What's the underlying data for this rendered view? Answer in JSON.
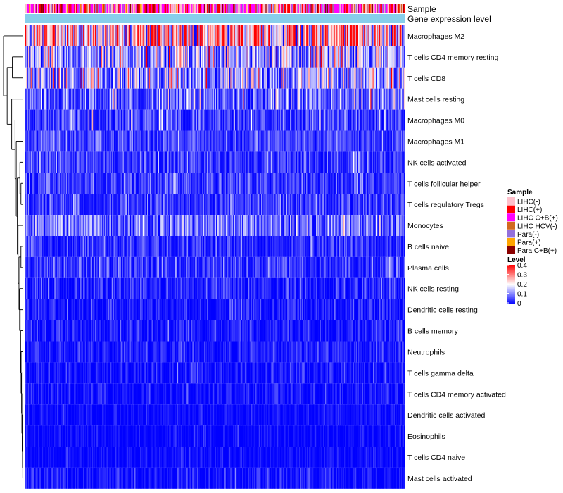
{
  "chart_data": {
    "type": "heatmap",
    "annotation_tracks": [
      "Sample",
      "Gene expression level"
    ],
    "rows": [
      {
        "label": "Macrophages M2",
        "mean": 0.25,
        "spread": 0.14
      },
      {
        "label": "T cells CD4 memory resting",
        "mean": 0.13,
        "spread": 0.1
      },
      {
        "label": "T cells CD8",
        "mean": 0.12,
        "spread": 0.11
      },
      {
        "label": "Mast cells resting",
        "mean": 0.07,
        "spread": 0.08
      },
      {
        "label": "Macrophages M0",
        "mean": 0.05,
        "spread": 0.06
      },
      {
        "label": "Macrophages M1",
        "mean": 0.05,
        "spread": 0.04
      },
      {
        "label": "NK cells activated",
        "mean": 0.04,
        "spread": 0.05
      },
      {
        "label": "T cells follicular helper",
        "mean": 0.04,
        "spread": 0.05
      },
      {
        "label": "T cells regulatory  Tregs",
        "mean": 0.04,
        "spread": 0.05
      },
      {
        "label": "Monocytes",
        "mean": 0.08,
        "spread": 0.06
      },
      {
        "label": "B cells naive",
        "mean": 0.03,
        "spread": 0.04
      },
      {
        "label": "Plasma cells",
        "mean": 0.03,
        "spread": 0.05
      },
      {
        "label": "NK cells resting",
        "mean": 0.02,
        "spread": 0.04
      },
      {
        "label": "Dendritic cells resting",
        "mean": 0.02,
        "spread": 0.03
      },
      {
        "label": "B cells memory",
        "mean": 0.02,
        "spread": 0.03
      },
      {
        "label": "Neutrophils",
        "mean": 0.02,
        "spread": 0.03
      },
      {
        "label": "T cells gamma delta",
        "mean": 0.01,
        "spread": 0.03
      },
      {
        "label": "T cells CD4 memory activated",
        "mean": 0.01,
        "spread": 0.03
      },
      {
        "label": "Dendritic cells activated",
        "mean": 0.01,
        "spread": 0.02
      },
      {
        "label": "Eosinophils",
        "mean": 0.005,
        "spread": 0.02
      },
      {
        "label": "T cells CD4 naive",
        "mean": 0.005,
        "spread": 0.02
      },
      {
        "label": "Mast cells activated",
        "mean": 0.01,
        "spread": 0.03
      }
    ],
    "n_samples": 420,
    "color_scale": {
      "min": 0,
      "max": 0.4,
      "colors": [
        "#0000ff",
        "#ffffff",
        "#ff0000"
      ]
    },
    "gene_expression_color": "#87ceeb",
    "legend": {
      "sample_title": "Sample",
      "sample_entries": [
        {
          "label": "LIHC(-)",
          "color": "#ffc0cb"
        },
        {
          "label": "LIHC(+)",
          "color": "#ff0000"
        },
        {
          "label": "LIHC C+B(+)",
          "color": "#ff00ff"
        },
        {
          "label": "LIHC HCV(-)",
          "color": "#d2691e"
        },
        {
          "label": "Para(-)",
          "color": "#9370db"
        },
        {
          "label": "Para(+)",
          "color": "#ffa500"
        },
        {
          "label": "Para C+B(+)",
          "color": "#8b0000"
        }
      ],
      "level_title": "Level",
      "level_ticks": [
        "0.4",
        "0.3",
        "0.2",
        "0.1",
        "0"
      ]
    }
  }
}
